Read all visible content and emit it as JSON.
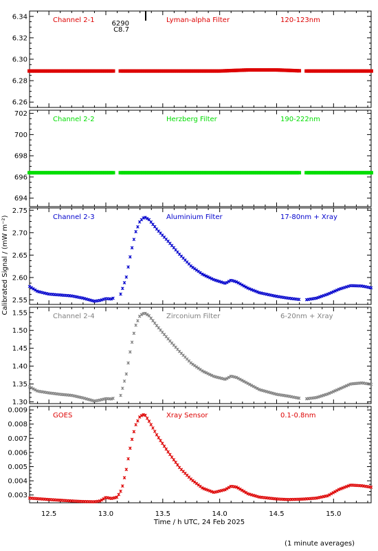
{
  "figure": {
    "xlabel": "Time / h UTC, 24 Feb 2025",
    "ylabel": "Calibrated Signal / (mW m⁻²)",
    "footnote": "(1 minute averages)",
    "x_ticks": [
      12.5,
      13.0,
      13.5,
      14.0,
      14.5,
      15.0
    ],
    "x_tick_labels": [
      "12.5",
      "13.0",
      "13.5",
      "14.0",
      "14.5",
      "15.0"
    ],
    "xlim": [
      12.33,
      15.33
    ]
  },
  "colors": {
    "red": "#dd0000",
    "green": "#00dd00",
    "blue": "#0000cc",
    "gray": "#808080",
    "axis": "#000000"
  },
  "chart_data": [
    {
      "type": "scatter",
      "label_left": "Channel 2-1",
      "label_mid": "Lyman-alpha Filter",
      "label_right": "120-123nm",
      "color": "red",
      "ylim": [
        6.255,
        6.345
      ],
      "y_ticks": [
        6.26,
        6.28,
        6.3,
        6.32,
        6.34
      ],
      "y_tick_labels": [
        "6.26",
        "6.28",
        "6.30",
        "6.32",
        "6.34"
      ],
      "annotation": {
        "lines": [
          "6290",
          "C8.7"
        ],
        "x": 13.35
      },
      "gaps": [
        [
          13.07,
          13.13
        ],
        [
          14.7,
          14.75
        ]
      ],
      "x": [
        12.33,
        12.5,
        12.75,
        13.0,
        13.25,
        13.5,
        13.75,
        14.0,
        14.25,
        14.5,
        14.75,
        15.0,
        15.33
      ],
      "y": [
        6.289,
        6.289,
        6.289,
        6.289,
        6.289,
        6.289,
        6.289,
        6.289,
        6.29,
        6.29,
        6.289,
        6.289,
        6.289
      ]
    },
    {
      "type": "scatter",
      "label_left": "Channel 2-2",
      "label_mid": "Herzberg Filter",
      "label_right": "190-222nm",
      "color": "green",
      "ylim": [
        693.2,
        702.3
      ],
      "y_ticks": [
        694,
        696,
        698,
        700,
        702
      ],
      "y_tick_labels": [
        "694",
        "696",
        "698",
        "700",
        "702"
      ],
      "gaps": [
        [
          13.07,
          13.13
        ],
        [
          14.7,
          14.75
        ]
      ],
      "x": [
        12.33,
        12.75,
        13.0,
        13.5,
        14.0,
        14.5,
        15.0,
        15.33
      ],
      "y": [
        696.4,
        696.4,
        696.4,
        696.4,
        696.4,
        696.4,
        696.4,
        696.4
      ]
    },
    {
      "type": "scatter",
      "label_left": "Channel 2-3",
      "label_mid": "Aluminium Filter",
      "label_right": "17-80nm + Xray",
      "color": "blue",
      "ylim": [
        2.54,
        2.755
      ],
      "y_ticks": [
        2.55,
        2.6,
        2.65,
        2.7,
        2.75
      ],
      "y_tick_labels": [
        "2.55",
        "2.60",
        "2.65",
        "2.70",
        "2.75"
      ],
      "gaps": [
        [
          13.07,
          13.13
        ],
        [
          14.7,
          14.75
        ]
      ],
      "x": [
        12.33,
        12.4,
        12.5,
        12.6,
        12.7,
        12.8,
        12.9,
        12.95,
        13.0,
        13.05,
        13.13,
        13.18,
        13.22,
        13.26,
        13.3,
        13.34,
        13.38,
        13.45,
        13.55,
        13.65,
        13.75,
        13.85,
        13.95,
        14.05,
        14.1,
        14.15,
        14.25,
        14.35,
        14.5,
        14.6,
        14.7,
        14.75,
        14.85,
        14.95,
        15.05,
        15.15,
        15.25,
        15.33
      ],
      "y": [
        2.58,
        2.569,
        2.563,
        2.561,
        2.559,
        2.554,
        2.547,
        2.549,
        2.553,
        2.552,
        2.563,
        2.601,
        2.655,
        2.7,
        2.726,
        2.735,
        2.729,
        2.707,
        2.68,
        2.651,
        2.625,
        2.607,
        2.595,
        2.587,
        2.594,
        2.59,
        2.576,
        2.566,
        2.558,
        2.554,
        2.551,
        2.55,
        2.554,
        2.563,
        2.574,
        2.582,
        2.581,
        2.577
      ]
    },
    {
      "type": "scatter",
      "label_left": "Channel 2-4",
      "label_mid": "Zirconium Filter",
      "label_right": "6-20nm + Xray",
      "color": "gray",
      "ylim": [
        1.295,
        1.565
      ],
      "y_ticks": [
        1.3,
        1.35,
        1.4,
        1.45,
        1.5,
        1.55
      ],
      "y_tick_labels": [
        "1.30",
        "1.35",
        "1.40",
        "1.45",
        "1.50",
        "1.55"
      ],
      "gaps": [
        [
          13.07,
          13.13
        ],
        [
          14.7,
          14.75
        ]
      ],
      "x": [
        12.33,
        12.4,
        12.5,
        12.6,
        12.7,
        12.8,
        12.9,
        12.95,
        13.0,
        13.05,
        13.13,
        13.18,
        13.22,
        13.26,
        13.3,
        13.34,
        13.38,
        13.45,
        13.55,
        13.65,
        13.75,
        13.85,
        13.95,
        14.05,
        14.1,
        14.15,
        14.25,
        14.35,
        14.5,
        14.6,
        14.7,
        14.75,
        14.85,
        14.95,
        15.05,
        15.15,
        15.25,
        15.33
      ],
      "y": [
        1.342,
        1.33,
        1.325,
        1.321,
        1.318,
        1.311,
        1.302,
        1.305,
        1.309,
        1.308,
        1.318,
        1.378,
        1.452,
        1.512,
        1.542,
        1.549,
        1.541,
        1.512,
        1.475,
        1.44,
        1.408,
        1.386,
        1.371,
        1.363,
        1.372,
        1.368,
        1.351,
        1.334,
        1.321,
        1.316,
        1.31,
        1.308,
        1.312,
        1.322,
        1.336,
        1.35,
        1.353,
        1.349
      ]
    },
    {
      "type": "scatter",
      "label_left": "GOES",
      "label_mid": "Xray Sensor",
      "label_right": "0.1-0.8nm",
      "color": "red",
      "ylim": [
        0.00245,
        0.00925
      ],
      "y_ticks": [
        0.003,
        0.004,
        0.005,
        0.006,
        0.007,
        0.008,
        0.009
      ],
      "y_tick_labels": [
        "0.003",
        "0.004",
        "0.005",
        "0.006",
        "0.007",
        "0.008",
        "0.009"
      ],
      "x": [
        12.33,
        12.4,
        12.5,
        12.6,
        12.7,
        12.8,
        12.9,
        12.95,
        13.0,
        13.05,
        13.1,
        13.14,
        13.18,
        13.22,
        13.26,
        13.3,
        13.34,
        13.38,
        13.45,
        13.55,
        13.65,
        13.75,
        13.85,
        13.95,
        14.05,
        14.1,
        14.15,
        14.25,
        14.35,
        14.5,
        14.6,
        14.7,
        14.75,
        14.85,
        14.95,
        15.05,
        15.15,
        15.25,
        15.33
      ],
      "y": [
        0.00278,
        0.00274,
        0.00268,
        0.00263,
        0.00258,
        0.00254,
        0.00252,
        0.00258,
        0.00283,
        0.00275,
        0.00285,
        0.0034,
        0.0048,
        0.0066,
        0.0079,
        0.00855,
        0.0087,
        0.0082,
        0.0072,
        0.006,
        0.0049,
        0.0041,
        0.00348,
        0.00318,
        0.00338,
        0.00362,
        0.00355,
        0.00308,
        0.00285,
        0.00272,
        0.00268,
        0.0027,
        0.00272,
        0.00278,
        0.00295,
        0.0034,
        0.0037,
        0.00365,
        0.00355
      ]
    }
  ]
}
